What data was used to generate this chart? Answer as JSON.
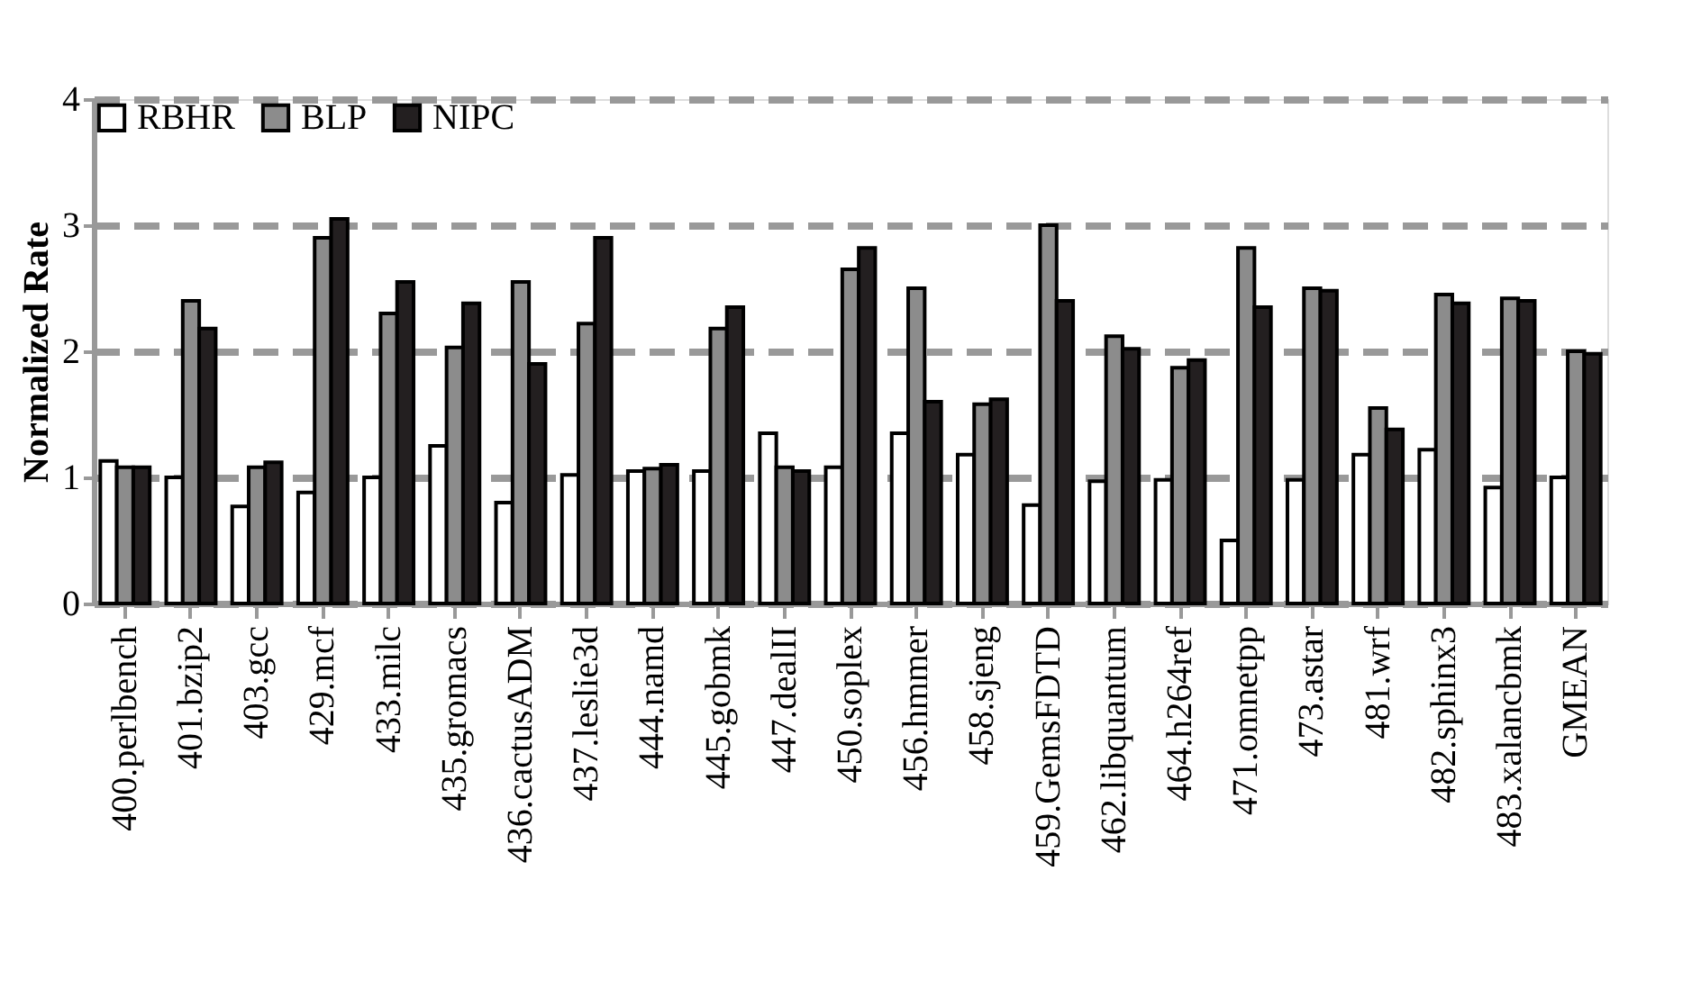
{
  "chart_data": {
    "type": "bar",
    "ylabel": "Normalized Rate",
    "categories": [
      "400.perlbench",
      "401.bzip2",
      "403.gcc",
      "429.mcf",
      "433.milc",
      "435.gromacs",
      "436.cactusADM",
      "437.leslie3d",
      "444.namd",
      "445.gobmk",
      "447.dealII",
      "450.soplex",
      "456.hmmer",
      "458.sjeng",
      "459.GemsFDTD",
      "462.libquantum",
      "464.h264ref",
      "471.omnetpp",
      "473.astar",
      "481.wrf",
      "482.sphinx3",
      "483.xalancbmk",
      "GMEAN"
    ],
    "series": [
      {
        "name": "RBHR",
        "color": "#ffffff",
        "values": [
          1.13,
          1.0,
          0.77,
          0.88,
          1.0,
          1.25,
          0.8,
          1.02,
          1.05,
          1.05,
          1.35,
          1.08,
          1.35,
          1.18,
          0.78,
          0.97,
          0.98,
          0.5,
          0.98,
          1.18,
          1.22,
          0.92,
          1.0
        ]
      },
      {
        "name": "BLP",
        "color": "#8c8c8c",
        "values": [
          1.08,
          2.4,
          1.08,
          2.9,
          2.3,
          2.03,
          2.55,
          2.22,
          1.07,
          2.18,
          1.08,
          2.65,
          2.5,
          1.58,
          3.0,
          2.12,
          1.87,
          2.82,
          2.5,
          1.55,
          2.45,
          2.42,
          2.0
        ]
      },
      {
        "name": "NIPC",
        "color": "#231f20",
        "values": [
          1.08,
          2.18,
          1.12,
          3.05,
          2.55,
          2.38,
          1.9,
          2.9,
          1.1,
          2.35,
          1.05,
          2.82,
          1.6,
          1.62,
          2.4,
          2.02,
          1.93,
          2.35,
          2.48,
          1.38,
          2.38,
          2.4,
          1.98
        ]
      }
    ],
    "ylim": [
      0,
      4
    ],
    "yticks": [
      0,
      1,
      2,
      3,
      4
    ],
    "grid": "y",
    "legend": "top left"
  }
}
